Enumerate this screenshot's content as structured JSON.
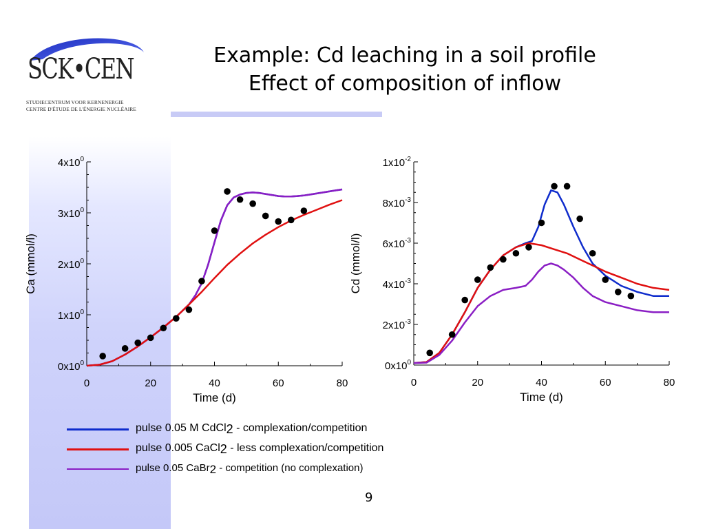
{
  "logo": {
    "wordmark": "SCK•CEN",
    "line1": "STUDIECENTRUM VOOR KERNENERGIE",
    "line2": "CENTRE D'ÉTUDE DE L'ÉNERGIE NUCLÉAIRE"
  },
  "title": {
    "line1": "Example: Cd leaching in a soil profile",
    "line2": "Effect of composition of inflow"
  },
  "colors": {
    "blue": "#0f2ccc",
    "red": "#e01010",
    "purple": "#8a1ec4",
    "band": "#c8cbf6"
  },
  "legend": [
    {
      "color": "#0f2ccc",
      "pre": "pulse 0.05 M CdCl",
      "sub": "2",
      "post": " - complexation/competition"
    },
    {
      "color": "#e01010",
      "pre": "pulse 0.005 CaCl",
      "sub": "2",
      "post": " - less complexation/competition"
    },
    {
      "color": "#8a1ec4",
      "pre": "pulse 0.05 CaBr",
      "sub": "2",
      "post": " - competition (no complexation)"
    }
  ],
  "page_number": "9",
  "chart_data": [
    {
      "type": "line",
      "xlabel": "Time (d)",
      "ylabel": "Ca (mmol/l)",
      "xlim": [
        0,
        80
      ],
      "ylim": [
        0,
        4
      ],
      "xticks": [
        0,
        20,
        40,
        60,
        80
      ],
      "yticks": [
        {
          "value": 0,
          "mant": "0x10",
          "exp": "0"
        },
        {
          "value": 1,
          "mant": "1x10",
          "exp": "0"
        },
        {
          "value": 2,
          "mant": "2x10",
          "exp": "0"
        },
        {
          "value": 3,
          "mant": "3x10",
          "exp": "0"
        },
        {
          "value": 4,
          "mant": "4x10",
          "exp": "0"
        }
      ],
      "grid": false,
      "series": [
        {
          "color": "#0f2ccc",
          "x": [
            0,
            4,
            8,
            12,
            16,
            20,
            24,
            28,
            32,
            34,
            36,
            38,
            40,
            42,
            44,
            46,
            48,
            50,
            52,
            54,
            56,
            58,
            60,
            62,
            64,
            66,
            68,
            70,
            72,
            74,
            76,
            78,
            80
          ],
          "y": [
            0,
            0.02,
            0.09,
            0.22,
            0.38,
            0.56,
            0.75,
            0.96,
            1.2,
            1.38,
            1.62,
            1.98,
            2.42,
            2.85,
            3.15,
            3.3,
            3.36,
            3.39,
            3.4,
            3.39,
            3.37,
            3.35,
            3.33,
            3.32,
            3.32,
            3.33,
            3.34,
            3.36,
            3.38,
            3.4,
            3.42,
            3.44,
            3.46
          ]
        },
        {
          "color": "#8a1ec4",
          "x": [
            0,
            4,
            8,
            12,
            16,
            20,
            24,
            28,
            32,
            34,
            36,
            38,
            40,
            42,
            44,
            46,
            48,
            50,
            52,
            54,
            56,
            58,
            60,
            62,
            64,
            66,
            68,
            70,
            72,
            74,
            76,
            78,
            80
          ],
          "y": [
            0,
            0.02,
            0.09,
            0.22,
            0.38,
            0.56,
            0.75,
            0.96,
            1.2,
            1.38,
            1.62,
            1.98,
            2.42,
            2.85,
            3.15,
            3.3,
            3.36,
            3.39,
            3.4,
            3.39,
            3.37,
            3.35,
            3.33,
            3.32,
            3.32,
            3.33,
            3.34,
            3.36,
            3.38,
            3.4,
            3.42,
            3.44,
            3.46
          ]
        },
        {
          "color": "#e01010",
          "x": [
            0,
            4,
            8,
            12,
            16,
            20,
            24,
            28,
            32,
            36,
            40,
            44,
            48,
            52,
            56,
            60,
            64,
            68,
            72,
            76,
            80
          ],
          "y": [
            0,
            0.02,
            0.09,
            0.22,
            0.38,
            0.56,
            0.75,
            0.96,
            1.2,
            1.45,
            1.72,
            1.98,
            2.2,
            2.4,
            2.57,
            2.72,
            2.85,
            2.96,
            3.06,
            3.16,
            3.25
          ]
        }
      ],
      "points": {
        "x": [
          5,
          12,
          16,
          20,
          24,
          28,
          32,
          36,
          40,
          44,
          48,
          52,
          56,
          60,
          64,
          68
        ],
        "y": [
          0.19,
          0.34,
          0.45,
          0.55,
          0.74,
          0.93,
          1.1,
          1.66,
          2.65,
          3.42,
          3.26,
          3.18,
          2.94,
          2.83,
          2.86,
          3.04
        ]
      }
    },
    {
      "type": "line",
      "xlabel": "Time (d)",
      "ylabel": "Cd (mmol/l)",
      "xlim": [
        0,
        80
      ],
      "ylim": [
        0,
        0.01
      ],
      "xticks": [
        0,
        20,
        40,
        60,
        80
      ],
      "yticks": [
        {
          "value": 0,
          "mant": "0x10",
          "exp": "0"
        },
        {
          "value": 0.002,
          "mant": "2x10",
          "exp": "-3"
        },
        {
          "value": 0.004,
          "mant": "4x10",
          "exp": "-3"
        },
        {
          "value": 0.006,
          "mant": "6x10",
          "exp": "-3"
        },
        {
          "value": 0.008,
          "mant": "8x10",
          "exp": "-3"
        },
        {
          "value": 0.01,
          "mant": "1x10",
          "exp": "-2"
        }
      ],
      "grid": false,
      "series": [
        {
          "color": "#0f2ccc",
          "x": [
            0,
            4,
            8,
            12,
            16,
            20,
            24,
            28,
            32,
            35,
            37,
            39,
            41,
            43,
            45,
            47,
            50,
            53,
            56,
            60,
            65,
            70,
            75,
            80
          ],
          "y": [
            0.0001,
            0.00015,
            0.0006,
            0.0015,
            0.0026,
            0.0038,
            0.0047,
            0.0054,
            0.0058,
            0.006,
            0.0061,
            0.0068,
            0.0079,
            0.0086,
            0.0085,
            0.0079,
            0.0068,
            0.0058,
            0.005,
            0.0044,
            0.0039,
            0.0036,
            0.0034,
            0.0034
          ]
        },
        {
          "color": "#e01010",
          "x": [
            0,
            4,
            8,
            12,
            16,
            20,
            24,
            28,
            32,
            36,
            40,
            44,
            48,
            52,
            56,
            60,
            65,
            70,
            75,
            80
          ],
          "y": [
            0.0001,
            0.00015,
            0.0006,
            0.0015,
            0.0026,
            0.0038,
            0.0047,
            0.0054,
            0.0058,
            0.006,
            0.0059,
            0.0057,
            0.0055,
            0.0052,
            0.0049,
            0.0046,
            0.0043,
            0.004,
            0.0038,
            0.0037
          ]
        },
        {
          "color": "#8a1ec4",
          "x": [
            0,
            4,
            8,
            12,
            16,
            20,
            24,
            28,
            32,
            35,
            37,
            39,
            41,
            43,
            45,
            47,
            50,
            53,
            56,
            60,
            65,
            70,
            75,
            80
          ],
          "y": [
            0.0001,
            0.00012,
            0.0005,
            0.0012,
            0.0021,
            0.0029,
            0.0034,
            0.0037,
            0.0038,
            0.0039,
            0.0042,
            0.0046,
            0.0049,
            0.005,
            0.0049,
            0.0047,
            0.0043,
            0.0038,
            0.0034,
            0.0031,
            0.0029,
            0.0027,
            0.0026,
            0.0026
          ]
        }
      ],
      "points": {
        "x": [
          5,
          12,
          16,
          20,
          24,
          28,
          32,
          36,
          40,
          44,
          48,
          52,
          56,
          60,
          64,
          68
        ],
        "y": [
          0.0006,
          0.0015,
          0.0032,
          0.0042,
          0.0048,
          0.0052,
          0.0055,
          0.0058,
          0.007,
          0.0088,
          0.0088,
          0.0072,
          0.0055,
          0.0042,
          0.0036,
          0.0034
        ]
      }
    }
  ]
}
